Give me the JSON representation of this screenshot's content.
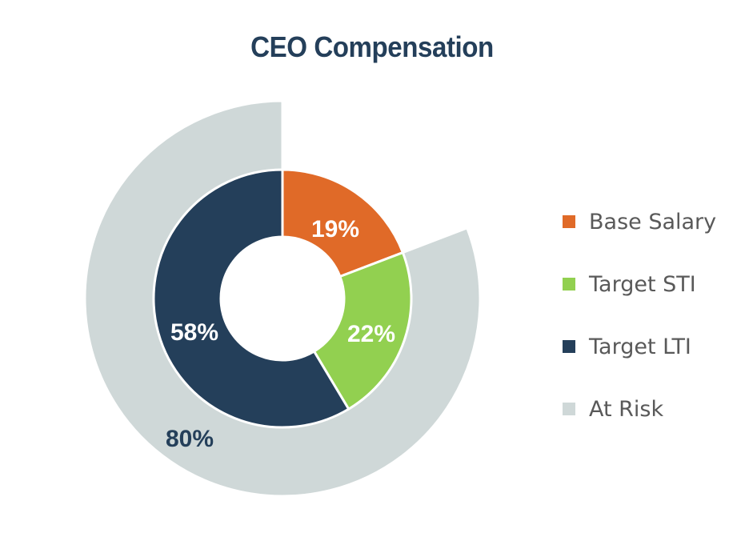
{
  "title": "CEO Compensation",
  "chart_data": {
    "type": "pie",
    "subtype": "nested-donut",
    "title": "CEO Compensation",
    "inner_ring": {
      "categories": [
        "Base Salary",
        "Target STI",
        "Target LTI"
      ],
      "values": [
        19,
        22,
        58
      ],
      "labels": [
        "19%",
        "22%",
        "58%"
      ],
      "colors": [
        "#e06a28",
        "#92d050",
        "#243f5a"
      ]
    },
    "outer_ring": {
      "categories": [
        "At Risk"
      ],
      "values": [
        80
      ],
      "labels": [
        "80%"
      ],
      "colors": [
        "#cfd8d8"
      ],
      "note": "Spans Target STI + Target LTI"
    },
    "legend": {
      "position": "right",
      "entries": [
        {
          "label": "Base Salary",
          "color": "#e06a28"
        },
        {
          "label": "Target STI",
          "color": "#92d050"
        },
        {
          "label": "Target LTI",
          "color": "#243f5a"
        },
        {
          "label": "At Risk",
          "color": "#cfd8d8"
        }
      ]
    }
  },
  "segments": {
    "base_salary": "19%",
    "target_sti": "22%",
    "target_lti": "58%",
    "at_risk": "80%"
  },
  "legend": [
    {
      "label": "Base Salary",
      "color": "#e06a28"
    },
    {
      "label": "Target STI",
      "color": "#92d050"
    },
    {
      "label": "Target LTI",
      "color": "#243f5a"
    },
    {
      "label": "At Risk",
      "color": "#cfd8d8"
    }
  ]
}
